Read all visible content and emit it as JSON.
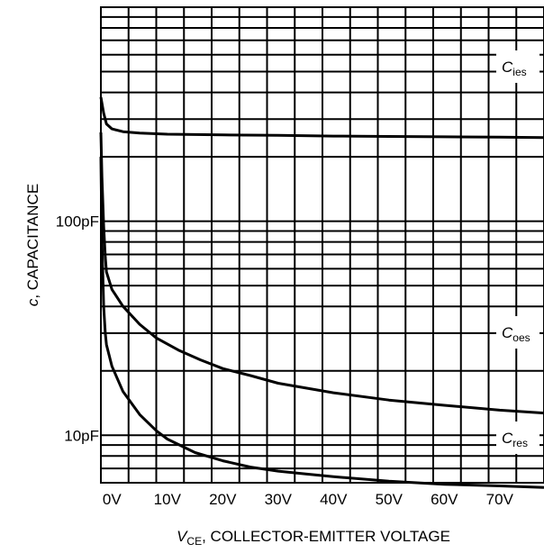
{
  "chart_data": {
    "type": "line",
    "title": "",
    "xlabel": {
      "symbol": "V",
      "subscript": "CE",
      "text": ", COLLECTOR-EMITTER VOLTAGE"
    },
    "ylabel": {
      "symbol": "c",
      "text": ", CAPACITANCE"
    },
    "xlim": [
      -2,
      78
    ],
    "ylim": [
      6,
      1000
    ],
    "y_scale": "log",
    "grid": true,
    "x_ticks": [
      0,
      10,
      20,
      30,
      40,
      50,
      60,
      70
    ],
    "x_tick_labels": [
      "0V",
      "10V",
      "20V",
      "30V",
      "40V",
      "50V",
      "60V",
      "70V"
    ],
    "y_ticks": [
      10,
      100
    ],
    "y_tick_labels": [
      "10pF",
      "100pF"
    ],
    "series": [
      {
        "name": "Cies",
        "label_main": "C",
        "label_sub": "ies",
        "x": [
          -2,
          -1.5,
          -1,
          0,
          2,
          5,
          10,
          20,
          30,
          40,
          50,
          60,
          70,
          78
        ],
        "y": [
          380,
          320,
          285,
          270,
          262,
          258,
          255,
          253,
          252,
          250,
          249,
          248,
          247,
          246
        ]
      },
      {
        "name": "Coes",
        "label_main": "C",
        "label_sub": "oes",
        "x": [
          -2,
          -1.8,
          -1.5,
          -1.2,
          -1,
          0,
          2,
          5,
          8,
          12,
          16,
          20,
          25,
          30,
          40,
          50,
          60,
          70,
          78
        ],
        "y": [
          260,
          160,
          95,
          68,
          58,
          48,
          40,
          33,
          28.5,
          25,
          22.5,
          20.5,
          19,
          17.5,
          15.8,
          14.6,
          13.8,
          13.1,
          12.7
        ]
      },
      {
        "name": "Cres",
        "label_main": "C",
        "label_sub": "res",
        "x": [
          -2,
          -1.8,
          -1.5,
          -1.2,
          -1,
          0,
          2,
          5,
          8,
          10,
          15,
          20,
          25,
          30,
          35,
          40,
          50,
          60,
          70,
          78
        ],
        "y": [
          200,
          80,
          40,
          30,
          26.5,
          21,
          16,
          12.5,
          10.5,
          9.6,
          8.3,
          7.6,
          7.1,
          6.8,
          6.6,
          6.4,
          6.1,
          5.9,
          5.8,
          5.7
        ]
      }
    ]
  }
}
